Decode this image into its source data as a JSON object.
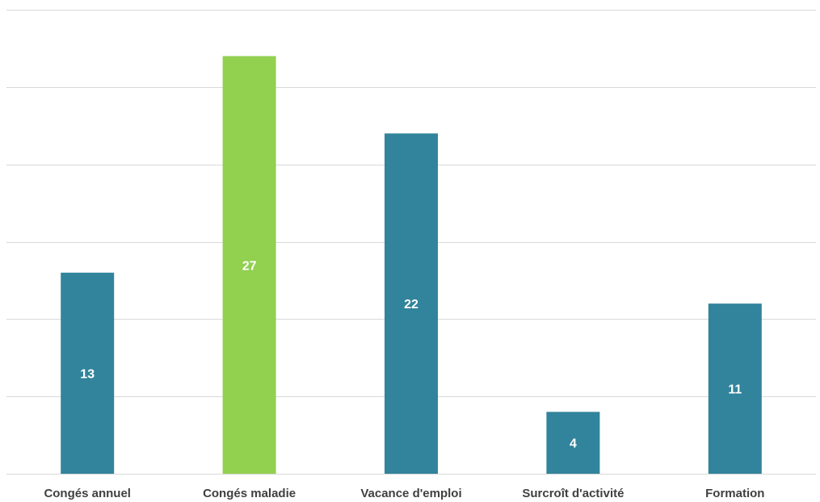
{
  "chart_data": {
    "type": "bar",
    "title": "",
    "xlabel": "",
    "ylabel": "",
    "categories": [
      "Congés annuel",
      "Congés maladie",
      "Vacance d'emploi",
      "Surcroît d'activité",
      "Formation"
    ],
    "values": [
      13,
      27,
      22,
      4,
      11
    ],
    "ylim": [
      0,
      30
    ],
    "gridlines": [
      5,
      10,
      15,
      20,
      25,
      30
    ],
    "grid": true,
    "legend": "none",
    "colors": {
      "default": "#31849b",
      "highlight": "#92d050"
    },
    "highlight_category": "Congés maladie"
  }
}
